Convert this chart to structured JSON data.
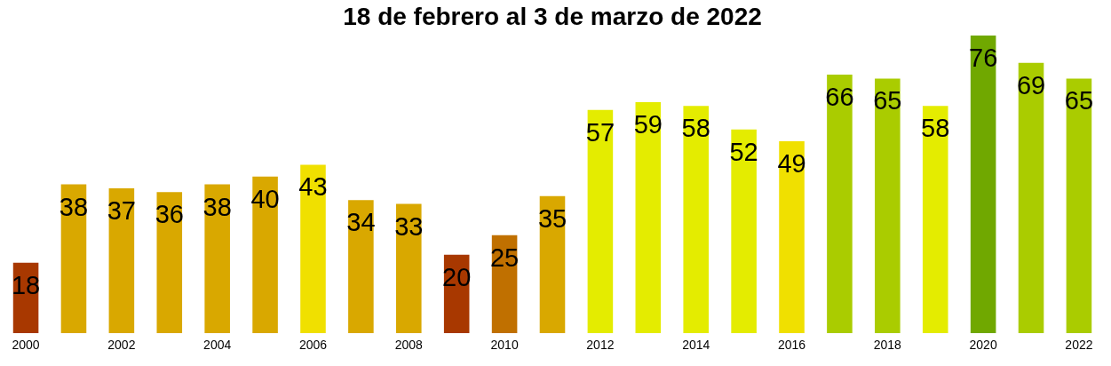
{
  "chart_data": {
    "type": "bar",
    "title": "18 de febrero al 3 de marzo de 2022",
    "categories": [
      "2000",
      null,
      "2002",
      null,
      "2004",
      null,
      "2006",
      null,
      "2008",
      null,
      "2010",
      null,
      "2012",
      null,
      "2014",
      null,
      "2016",
      null,
      "2018",
      null,
      "2020",
      null,
      "2022"
    ],
    "values": [
      18,
      38,
      37,
      36,
      38,
      40,
      43,
      34,
      33,
      20,
      25,
      35,
      57,
      59,
      58,
      52,
      49,
      66,
      65,
      58,
      76,
      69,
      65
    ],
    "colors": [
      "#a83800",
      "#d9a800",
      "#d9a800",
      "#d9a800",
      "#d9a800",
      "#d9a800",
      "#f0e000",
      "#d9a800",
      "#d9a800",
      "#a83800",
      "#c07000",
      "#d9a800",
      "#e4ec00",
      "#e4ec00",
      "#e4ec00",
      "#e4ec00",
      "#f0e000",
      "#aacc00",
      "#aacc00",
      "#e4ec00",
      "#70a800",
      "#aacc00",
      "#aacc00"
    ],
    "data_labels": true,
    "grid": false,
    "tick_labels": "x"
  }
}
